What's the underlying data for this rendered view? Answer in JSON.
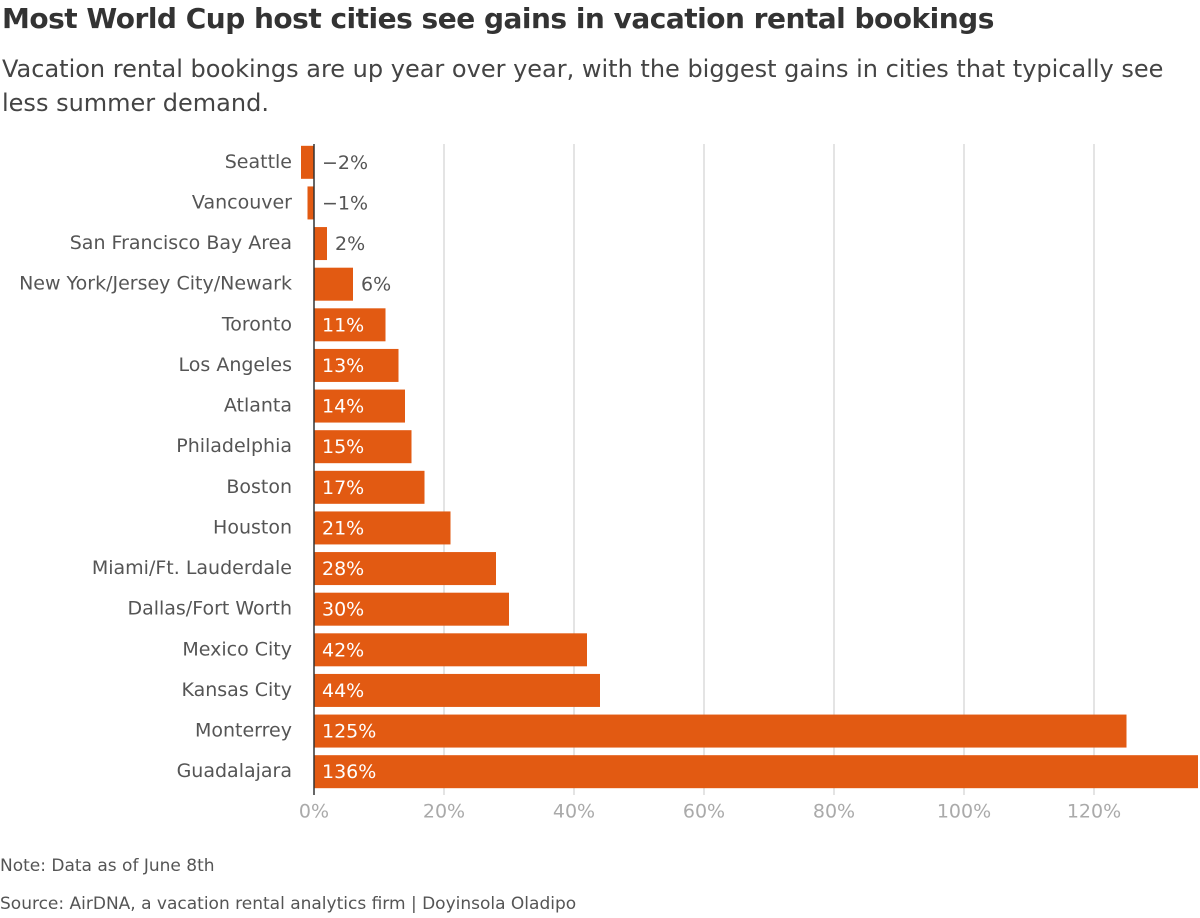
{
  "chart_data": {
    "type": "bar",
    "orientation": "horizontal",
    "title": "Most World Cup host cities see gains in vacation rental bookings",
    "subtitle": "Vacation rental bookings are up year over year, with the biggest gains in cities that typically see less summer demand.",
    "categories": [
      "Seattle",
      "Vancouver",
      "San Francisco Bay Area",
      "New York/Jersey City/Newark",
      "Toronto",
      "Los Angeles",
      "Atlanta",
      "Philadelphia",
      "Boston",
      "Houston",
      "Miami/Ft. Lauderdale",
      "Dallas/Fort Worth",
      "Mexico City",
      "Kansas City",
      "Monterrey",
      "Guadalajara"
    ],
    "values": [
      -2,
      -1,
      2,
      6,
      11,
      13,
      14,
      15,
      17,
      21,
      28,
      30,
      42,
      44,
      125,
      136
    ],
    "value_labels": [
      "−2%",
      "−1%",
      "2%",
      "6%",
      "11%",
      "13%",
      "14%",
      "15%",
      "17%",
      "21%",
      "28%",
      "30%",
      "42%",
      "44%",
      "125%",
      "136%"
    ],
    "color": "#e25a12",
    "xlim": [
      -2,
      136
    ],
    "xticks": [
      {
        "value": 0,
        "label": "0%"
      },
      {
        "value": 20,
        "label": "20%"
      },
      {
        "value": 40,
        "label": "40%"
      },
      {
        "value": 60,
        "label": "60%"
      },
      {
        "value": 80,
        "label": "80%"
      },
      {
        "value": 100,
        "label": "100%"
      },
      {
        "value": 120,
        "label": "120%"
      }
    ],
    "grid": true,
    "note": "Note: Data as of June 8th",
    "source": "Source: AirDNA, a vacation rental analytics firm | Doyinsola Oladipo"
  }
}
